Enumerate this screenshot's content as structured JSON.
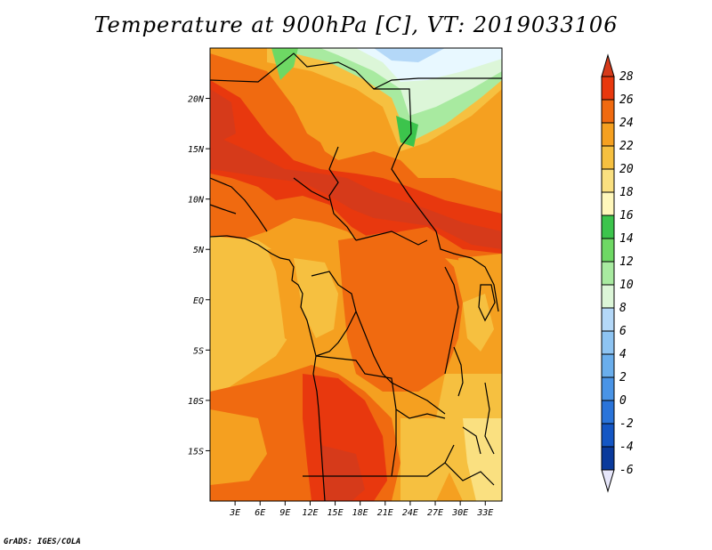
{
  "title": "Temperature at 900hPa [C], VT: 2019033106",
  "footer": "GrADS: IGES/COLA",
  "map": {
    "lon_range": [
      0,
      35
    ],
    "lat_range": [
      -20,
      25
    ],
    "x_ticks": [
      {
        "lon": 3,
        "label": "3E"
      },
      {
        "lon": 6,
        "label": "6E"
      },
      {
        "lon": 9,
        "label": "9E"
      },
      {
        "lon": 12,
        "label": "12E"
      },
      {
        "lon": 15,
        "label": "15E"
      },
      {
        "lon": 18,
        "label": "18E"
      },
      {
        "lon": 21,
        "label": "21E"
      },
      {
        "lon": 24,
        "label": "24E"
      },
      {
        "lon": 27,
        "label": "27E"
      },
      {
        "lon": 30,
        "label": "30E"
      },
      {
        "lon": 33,
        "label": "33E"
      }
    ],
    "y_ticks": [
      {
        "lat": 20,
        "label": "20N"
      },
      {
        "lat": 15,
        "label": "15N"
      },
      {
        "lat": 10,
        "label": "10N"
      },
      {
        "lat": 5,
        "label": "5N"
      },
      {
        "lat": 0,
        "label": "EQ"
      },
      {
        "lat": -5,
        "label": "5S"
      },
      {
        "lat": -10,
        "label": "10S"
      },
      {
        "lat": -15,
        "label": "15S"
      }
    ]
  },
  "colorbar": {
    "labels": [
      "28",
      "26",
      "24",
      "22",
      "20",
      "18",
      "16",
      "14",
      "12",
      "10",
      "8",
      "6",
      "4",
      "2",
      "0",
      "-2",
      "-4",
      "-6"
    ],
    "colors": {
      "gt28": "#d63a1a",
      "26_28": "#e8380e",
      "24_26": "#f06a10",
      "22_24": "#f5a020",
      "20_22": "#f6c040",
      "18_20": "#fae080",
      "16_18": "#fff7bb",
      "14_16": "#3cc44c",
      "12_14": "#6ed864",
      "10_12": "#a8eaa0",
      "8_10": "#dcf6d8",
      "6_8": "#b4d8f8",
      "4_6": "#8ec4f2",
      "2_4": "#6aaeec",
      "0_2": "#4a94e6",
      "m2_0": "#2a74da",
      "m4_m2": "#1456c4",
      "m6_m4": "#0a3a9c",
      "lt_m6": "#0a0a6a",
      "below": "#e6e6fa"
    }
  }
}
